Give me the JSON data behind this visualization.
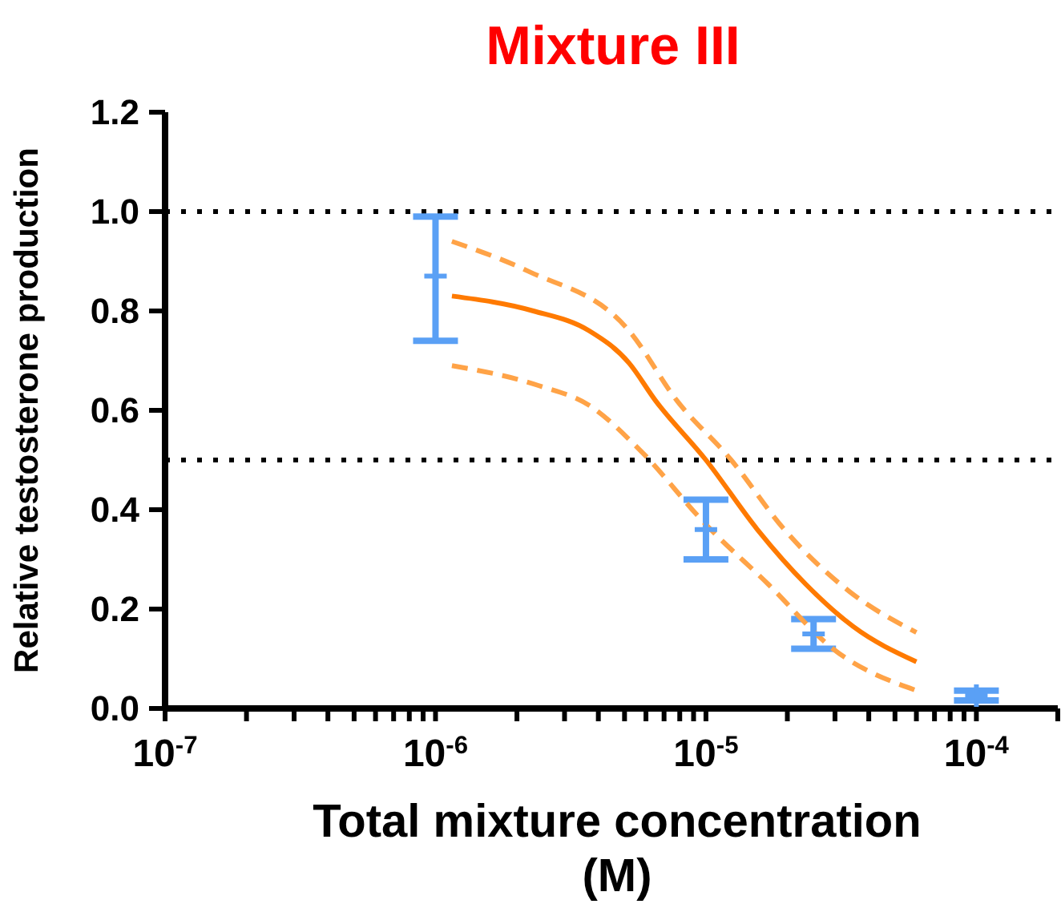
{
  "chart_data": {
    "type": "scatter",
    "title": "Mixture III",
    "xlabel": "Total mixture concentration (M)",
    "ylabel": "Relative testosterone production",
    "log": "x",
    "xlim": [
      1e-07,
      0.0002
    ],
    "xticks": [
      {
        "value": 1e-07,
        "label": "10$^{-7}$"
      },
      {
        "value": 2e-07,
        "label": null
      },
      {
        "value": 3e-07,
        "label": null
      },
      {
        "value": 4e-07,
        "label": null
      },
      {
        "value": 5e-07,
        "label": null
      },
      {
        "value": 6e-07,
        "label": null
      },
      {
        "value": 7e-07,
        "label": null
      },
      {
        "value": 8e-07,
        "label": null
      },
      {
        "value": 9e-07,
        "label": null
      },
      {
        "value": 1e-06,
        "label": "10$^{-6}$"
      },
      {
        "value": 2e-06,
        "label": null
      },
      {
        "value": 3e-06,
        "label": null
      },
      {
        "value": 4e-06,
        "label": null
      },
      {
        "value": 5e-06,
        "label": null
      },
      {
        "value": 6e-06,
        "label": null
      },
      {
        "value": 7e-06,
        "label": null
      },
      {
        "value": 8e-06,
        "label": null
      },
      {
        "value": 9e-06,
        "label": null
      },
      {
        "value": 1e-05,
        "label": "10$^{-5}$"
      },
      {
        "value": 2e-05,
        "label": null
      },
      {
        "value": 3e-05,
        "label": null
      },
      {
        "value": 4e-05,
        "label": null
      },
      {
        "value": 5e-05,
        "label": null
      },
      {
        "value": 6e-05,
        "label": null
      },
      {
        "value": 7e-05,
        "label": null
      },
      {
        "value": 8e-05,
        "label": null
      },
      {
        "value": 9e-05,
        "label": null
      },
      {
        "value": 0.0001,
        "label": "10$^{-4}$"
      },
      {
        "value": 0.0002,
        "label": null
      }
    ],
    "ylim": [
      0,
      1.2
    ],
    "yticks": [
      {
        "value": 0,
        "label": "0.0"
      },
      0.2,
      0.4,
      0.6,
      0.8,
      {
        "value": 1,
        "label": "1.0"
      },
      1.2
    ],
    "ref_lines": [
      {
        "axis": "y",
        "value": 1,
        "color": "#000000",
        "line_style": "dotted"
      },
      {
        "axis": "y",
        "value": 0.5,
        "color": "#000000",
        "line_style": "dotted"
      }
    ],
    "series": [
      {
        "type": "scatter",
        "marker": "cross",
        "color": "#5aa0f5",
        "x": [
          1e-06,
          1e-05,
          2.5e-05,
          0.0001
        ],
        "values": [
          0.87,
          0.36,
          0.15,
          0.026
        ],
        "errors": [
          [
            0.74,
            0.99
          ],
          [
            0.3,
            0.42
          ],
          [
            0.12,
            0.18
          ],
          [
            0.016,
            0.036
          ]
        ]
      },
      {
        "type": "line",
        "color": "#ff7a00",
        "line_style": "solid",
        "x": [
          1.15e-06,
          2.3e-06,
          3.7e-06,
          5.2e-06,
          6.5e-06,
          1e-05,
          1.55e-05,
          2.34e-05,
          3.5e-05,
          6e-05
        ],
        "values": [
          0.83,
          0.8,
          0.76,
          0.695,
          0.62,
          0.5,
          0.36,
          0.25,
          0.165,
          0.094
        ]
      },
      {
        "type": "line",
        "color": "#ffa347",
        "line_style": "dashed",
        "x": [
          1.15e-06,
          2.2e-06,
          5.2e-06,
          7.8e-06,
          1.24e-05,
          1.95e-05,
          3.4e-05,
          6e-05
        ],
        "values": [
          0.94,
          0.88,
          0.76,
          0.62,
          0.5,
          0.36,
          0.235,
          0.153
        ]
      },
      {
        "type": "line",
        "color": "#ffa347",
        "line_style": "dashed",
        "x": [
          1.15e-06,
          2.4e-06,
          3.7e-06,
          5.7e-06,
          1e-05,
          1.7e-05,
          2.95e-05,
          6e-05
        ],
        "values": [
          0.69,
          0.65,
          0.61,
          0.52,
          0.37,
          0.25,
          0.12,
          0.036
        ]
      }
    ]
  }
}
